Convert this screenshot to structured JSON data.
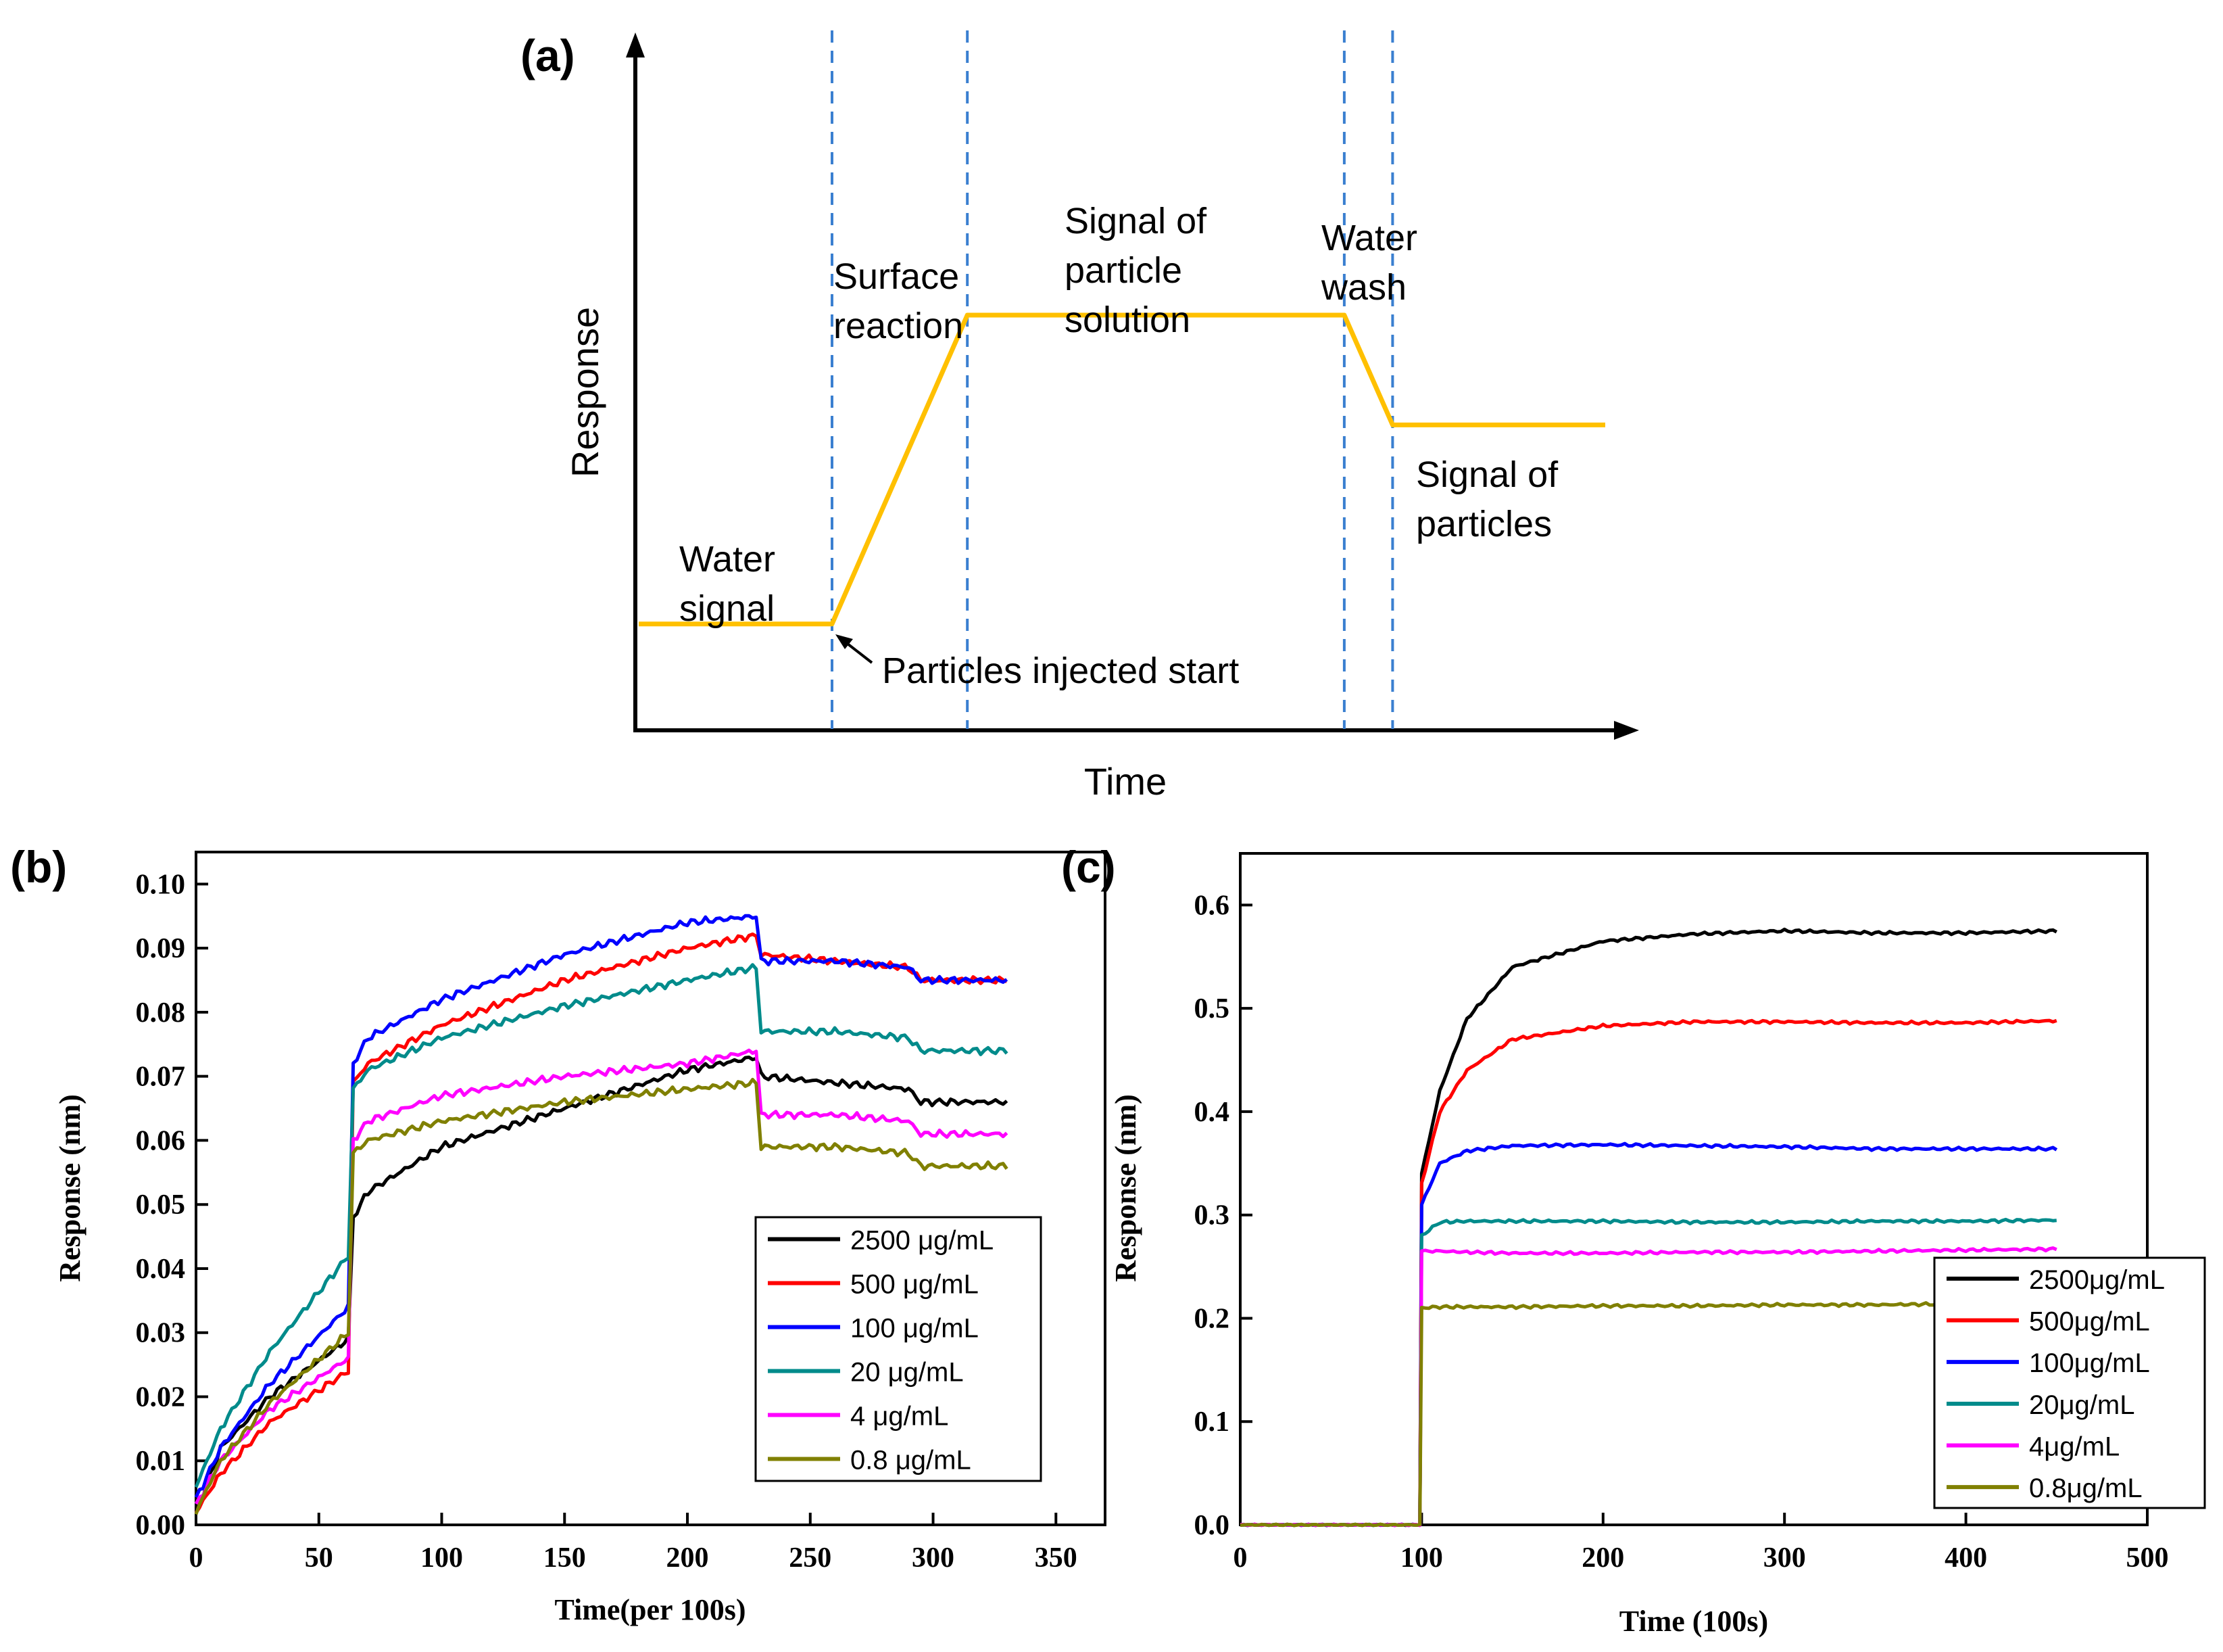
{
  "chart_data": [
    {
      "panel": "(a)",
      "type": "line",
      "xlabel": "Time",
      "ylabel": "Response",
      "phase_lines_x": [
        0.2,
        0.34,
        0.73,
        0.78
      ],
      "profile": {
        "x": [
          0.0,
          0.2,
          0.34,
          0.73,
          0.78,
          1.0
        ],
        "y": [
          0.15,
          0.15,
          0.6,
          0.6,
          0.44,
          0.44
        ]
      },
      "annotations": [
        {
          "name": "water-signal",
          "lines": [
            "Water",
            "signal"
          ]
        },
        {
          "name": "surface-reaction",
          "lines": [
            "Surface",
            "reaction"
          ]
        },
        {
          "name": "signal-of-particle-solution",
          "lines": [
            "Signal of",
            "particle",
            "solution"
          ]
        },
        {
          "name": "water-wash",
          "lines": [
            "Water",
            "wash"
          ]
        },
        {
          "name": "signal-of-particles",
          "lines": [
            "Signal of",
            "particles"
          ]
        },
        {
          "name": "particles-injected-start",
          "lines": [
            "Particles injected start"
          ]
        }
      ]
    },
    {
      "panel": "(b)",
      "type": "line",
      "xlabel": "Time(per 100s)",
      "ylabel": "Response (nm)",
      "xlim": [
        0,
        370
      ],
      "ylim": [
        0,
        0.105
      ],
      "xticks": [
        0,
        50,
        100,
        150,
        200,
        250,
        300,
        350
      ],
      "yticks": [
        0.0,
        0.01,
        0.02,
        0.03,
        0.04,
        0.05,
        0.06,
        0.07,
        0.08,
        0.09,
        0.1
      ],
      "legend_position": "lower-right",
      "series": [
        {
          "name": "2500 μg/mL",
          "color": "#000000",
          "x": [
            0,
            10,
            30,
            62,
            64,
            70,
            100,
            150,
            200,
            228,
            230,
            260,
            290,
            295,
            330
          ],
          "y": [
            0.002,
            0.012,
            0.02,
            0.029,
            0.048,
            0.052,
            0.059,
            0.065,
            0.071,
            0.073,
            0.07,
            0.069,
            0.068,
            0.066,
            0.066
          ]
        },
        {
          "name": "500 μg/mL",
          "color": "#ff0000",
          "x": [
            0,
            10,
            30,
            62,
            64,
            70,
            100,
            150,
            200,
            228,
            230,
            260,
            290,
            295,
            330
          ],
          "y": [
            0.002,
            0.008,
            0.016,
            0.024,
            0.069,
            0.072,
            0.078,
            0.085,
            0.09,
            0.092,
            0.089,
            0.088,
            0.087,
            0.085,
            0.085
          ]
        },
        {
          "name": "100 μg/mL",
          "color": "#0000ff",
          "x": [
            0,
            10,
            30,
            62,
            64,
            70,
            100,
            150,
            200,
            228,
            230,
            260,
            290,
            295,
            330
          ],
          "y": [
            0.004,
            0.012,
            0.022,
            0.034,
            0.072,
            0.076,
            0.082,
            0.089,
            0.094,
            0.095,
            0.088,
            0.088,
            0.087,
            0.085,
            0.085
          ]
        },
        {
          "name": "20 μg/mL",
          "color": "#008b8b",
          "x": [
            0,
            10,
            30,
            62,
            64,
            70,
            100,
            150,
            200,
            228,
            230,
            260,
            290,
            295,
            330
          ],
          "y": [
            0.006,
            0.015,
            0.027,
            0.042,
            0.068,
            0.071,
            0.076,
            0.081,
            0.085,
            0.087,
            0.077,
            0.077,
            0.076,
            0.074,
            0.074
          ]
        },
        {
          "name": "4 μg/mL",
          "color": "#ff00ff",
          "x": [
            0,
            10,
            30,
            62,
            64,
            70,
            100,
            150,
            200,
            228,
            230,
            260,
            290,
            295,
            330
          ],
          "y": [
            0.003,
            0.01,
            0.018,
            0.026,
            0.06,
            0.063,
            0.067,
            0.07,
            0.072,
            0.074,
            0.064,
            0.064,
            0.063,
            0.061,
            0.061
          ]
        },
        {
          "name": "0.8 μg/mL",
          "color": "#808000",
          "x": [
            0,
            10,
            30,
            62,
            64,
            70,
            100,
            150,
            200,
            228,
            230,
            260,
            290,
            295,
            330
          ],
          "y": [
            0.002,
            0.01,
            0.019,
            0.03,
            0.058,
            0.06,
            0.063,
            0.066,
            0.068,
            0.069,
            0.059,
            0.059,
            0.058,
            0.056,
            0.056
          ]
        }
      ]
    },
    {
      "panel": "(c)",
      "type": "line",
      "xlabel": "Time (100s)",
      "ylabel": "Response (nm)",
      "xlim": [
        0,
        500
      ],
      "ylim": [
        0,
        0.65
      ],
      "xticks": [
        0,
        100,
        200,
        300,
        400,
        500
      ],
      "yticks": [
        0.0,
        0.1,
        0.2,
        0.3,
        0.4,
        0.5,
        0.6
      ],
      "legend_position": "lower-right",
      "series": [
        {
          "name": "2500μg/mL",
          "color": "#000000",
          "x": [
            0,
            99,
            100,
            110,
            125,
            150,
            200,
            250,
            300,
            350,
            400,
            450
          ],
          "y": [
            0.0,
            0.0,
            0.34,
            0.42,
            0.49,
            0.54,
            0.565,
            0.572,
            0.575,
            0.573,
            0.573,
            0.575
          ]
        },
        {
          "name": "500μg/mL",
          "color": "#ff0000",
          "x": [
            0,
            99,
            100,
            110,
            125,
            150,
            200,
            250,
            300,
            350,
            400,
            450
          ],
          "y": [
            0.0,
            0.0,
            0.33,
            0.4,
            0.44,
            0.47,
            0.483,
            0.487,
            0.487,
            0.486,
            0.486,
            0.488
          ]
        },
        {
          "name": "100μg/mL",
          "color": "#0000ff",
          "x": [
            0,
            99,
            100,
            110,
            125,
            150,
            200,
            250,
            300,
            350,
            400,
            450
          ],
          "y": [
            0.0,
            0.0,
            0.31,
            0.35,
            0.362,
            0.367,
            0.368,
            0.367,
            0.366,
            0.364,
            0.364,
            0.364
          ]
        },
        {
          "name": "20μg/mL",
          "color": "#008b8b",
          "x": [
            0,
            99,
            100,
            110,
            125,
            150,
            200,
            250,
            300,
            350,
            400,
            450
          ],
          "y": [
            0.0,
            0.0,
            0.28,
            0.293,
            0.294,
            0.294,
            0.294,
            0.293,
            0.293,
            0.294,
            0.294,
            0.295
          ]
        },
        {
          "name": "4μg/mL",
          "color": "#ff00ff",
          "x": [
            0,
            99,
            100,
            110,
            125,
            150,
            200,
            250,
            300,
            350,
            400,
            450
          ],
          "y": [
            0.0,
            0.0,
            0.265,
            0.265,
            0.264,
            0.263,
            0.263,
            0.264,
            0.264,
            0.265,
            0.266,
            0.267
          ]
        },
        {
          "name": "0.8μg/mL",
          "color": "#808000",
          "x": [
            0,
            99,
            100,
            110,
            125,
            150,
            200,
            250,
            300,
            350,
            400,
            450
          ],
          "y": [
            0.0,
            0.0,
            0.21,
            0.211,
            0.211,
            0.211,
            0.212,
            0.212,
            0.213,
            0.213,
            0.214,
            0.215
          ]
        }
      ]
    }
  ]
}
